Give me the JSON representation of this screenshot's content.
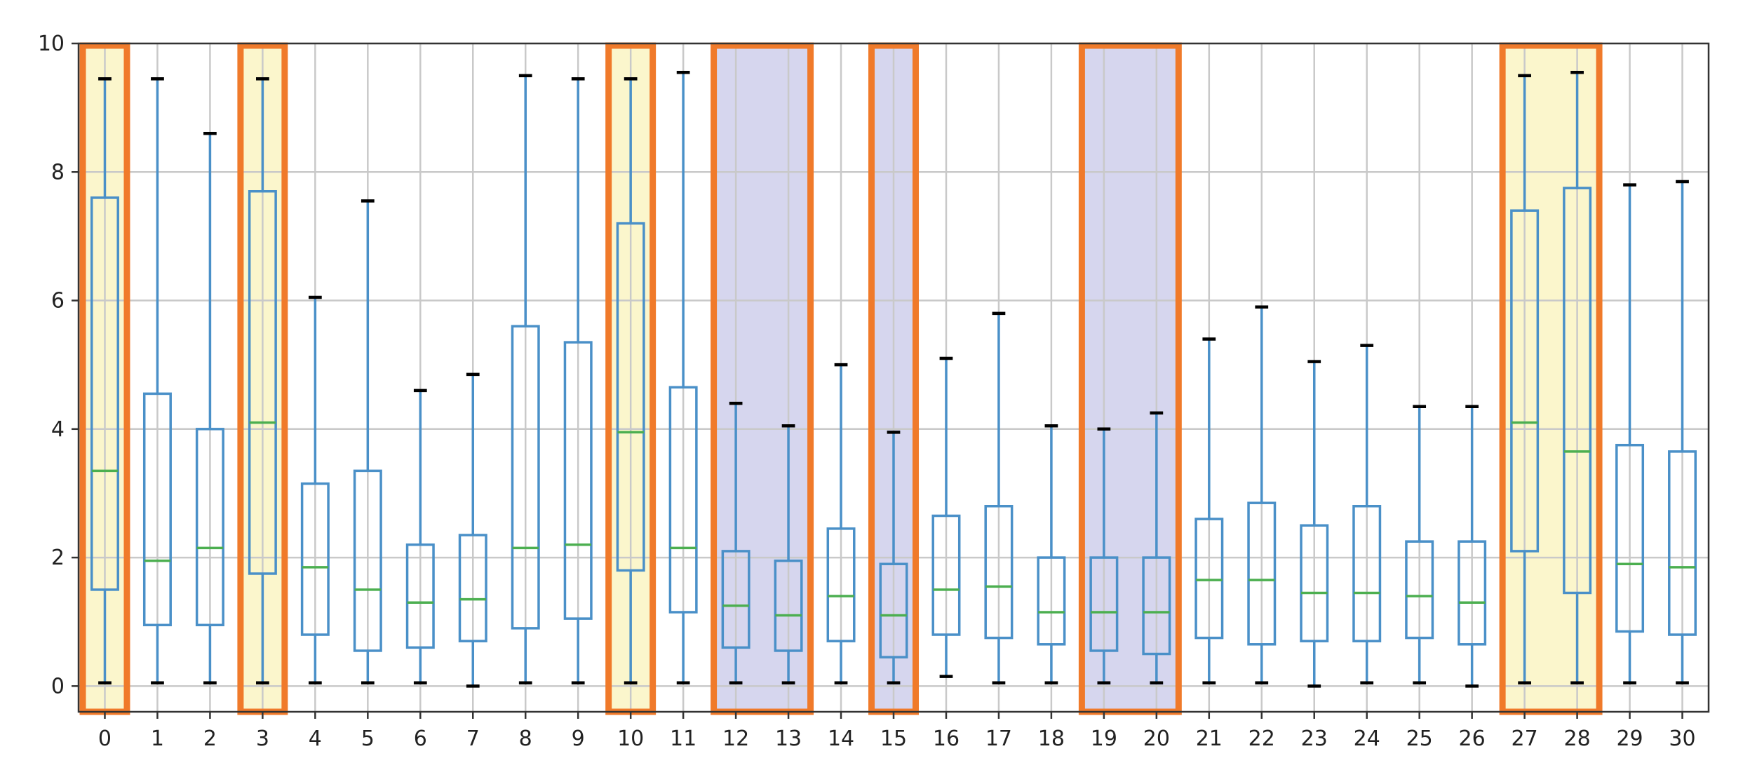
{
  "chart_data": {
    "type": "boxplot",
    "title": "",
    "xlabel": "",
    "ylabel": "",
    "grid": true,
    "xlim": [
      -0.5,
      30.5
    ],
    "ylim": [
      -0.4,
      10.0
    ],
    "yticks": [
      0,
      2,
      4,
      6,
      8,
      10
    ],
    "categories": [
      "0",
      "1",
      "2",
      "3",
      "4",
      "5",
      "6",
      "7",
      "8",
      "9",
      "10",
      "11",
      "12",
      "13",
      "14",
      "15",
      "16",
      "17",
      "18",
      "19",
      "20",
      "21",
      "22",
      "23",
      "24",
      "25",
      "26",
      "27",
      "28",
      "29",
      "30"
    ],
    "boxes": [
      {
        "label": "0",
        "whisker_low": 0.05,
        "q1": 1.5,
        "median": 3.35,
        "q3": 7.6,
        "whisker_high": 9.45
      },
      {
        "label": "1",
        "whisker_low": 0.05,
        "q1": 0.95,
        "median": 1.95,
        "q3": 4.55,
        "whisker_high": 9.45
      },
      {
        "label": "2",
        "whisker_low": 0.05,
        "q1": 0.95,
        "median": 2.15,
        "q3": 4.0,
        "whisker_high": 8.6
      },
      {
        "label": "3",
        "whisker_low": 0.05,
        "q1": 1.75,
        "median": 4.1,
        "q3": 7.7,
        "whisker_high": 9.45
      },
      {
        "label": "4",
        "whisker_low": 0.05,
        "q1": 0.8,
        "median": 1.85,
        "q3": 3.15,
        "whisker_high": 6.05
      },
      {
        "label": "5",
        "whisker_low": 0.05,
        "q1": 0.55,
        "median": 1.5,
        "q3": 3.35,
        "whisker_high": 7.55
      },
      {
        "label": "6",
        "whisker_low": 0.05,
        "q1": 0.6,
        "median": 1.3,
        "q3": 2.2,
        "whisker_high": 4.6
      },
      {
        "label": "7",
        "whisker_low": 0.0,
        "q1": 0.7,
        "median": 1.35,
        "q3": 2.35,
        "whisker_high": 4.85
      },
      {
        "label": "8",
        "whisker_low": 0.05,
        "q1": 0.9,
        "median": 2.15,
        "q3": 5.6,
        "whisker_high": 9.5
      },
      {
        "label": "9",
        "whisker_low": 0.05,
        "q1": 1.05,
        "median": 2.2,
        "q3": 5.35,
        "whisker_high": 9.45
      },
      {
        "label": "10",
        "whisker_low": 0.05,
        "q1": 1.8,
        "median": 3.95,
        "q3": 7.2,
        "whisker_high": 9.45
      },
      {
        "label": "11",
        "whisker_low": 0.05,
        "q1": 1.15,
        "median": 2.15,
        "q3": 4.65,
        "whisker_high": 9.55
      },
      {
        "label": "12",
        "whisker_low": 0.05,
        "q1": 0.6,
        "median": 1.25,
        "q3": 2.1,
        "whisker_high": 4.4
      },
      {
        "label": "13",
        "whisker_low": 0.05,
        "q1": 0.55,
        "median": 1.1,
        "q3": 1.95,
        "whisker_high": 4.05
      },
      {
        "label": "14",
        "whisker_low": 0.05,
        "q1": 0.7,
        "median": 1.4,
        "q3": 2.45,
        "whisker_high": 5.0
      },
      {
        "label": "15",
        "whisker_low": 0.05,
        "q1": 0.45,
        "median": 1.1,
        "q3": 1.9,
        "whisker_high": 3.95
      },
      {
        "label": "16",
        "whisker_low": 0.15,
        "q1": 0.8,
        "median": 1.5,
        "q3": 2.65,
        "whisker_high": 5.1
      },
      {
        "label": "17",
        "whisker_low": 0.05,
        "q1": 0.75,
        "median": 1.55,
        "q3": 2.8,
        "whisker_high": 5.8
      },
      {
        "label": "18",
        "whisker_low": 0.05,
        "q1": 0.65,
        "median": 1.15,
        "q3": 2.0,
        "whisker_high": 4.05
      },
      {
        "label": "19",
        "whisker_low": 0.05,
        "q1": 0.55,
        "median": 1.15,
        "q3": 2.0,
        "whisker_high": 4.0
      },
      {
        "label": "20",
        "whisker_low": 0.05,
        "q1": 0.5,
        "median": 1.15,
        "q3": 2.0,
        "whisker_high": 4.25
      },
      {
        "label": "21",
        "whisker_low": 0.05,
        "q1": 0.75,
        "median": 1.65,
        "q3": 2.6,
        "whisker_high": 5.4
      },
      {
        "label": "22",
        "whisker_low": 0.05,
        "q1": 0.65,
        "median": 1.65,
        "q3": 2.85,
        "whisker_high": 5.9
      },
      {
        "label": "23",
        "whisker_low": 0.0,
        "q1": 0.7,
        "median": 1.45,
        "q3": 2.5,
        "whisker_high": 5.05
      },
      {
        "label": "24",
        "whisker_low": 0.05,
        "q1": 0.7,
        "median": 1.45,
        "q3": 2.8,
        "whisker_high": 5.3
      },
      {
        "label": "25",
        "whisker_low": 0.05,
        "q1": 0.75,
        "median": 1.4,
        "q3": 2.25,
        "whisker_high": 4.35
      },
      {
        "label": "26",
        "whisker_low": 0.0,
        "q1": 0.65,
        "median": 1.3,
        "q3": 2.25,
        "whisker_high": 4.35
      },
      {
        "label": "27",
        "whisker_low": 0.05,
        "q1": 2.1,
        "median": 4.1,
        "q3": 7.4,
        "whisker_high": 9.5
      },
      {
        "label": "28",
        "whisker_low": 0.05,
        "q1": 1.45,
        "median": 3.65,
        "q3": 7.75,
        "whisker_high": 9.55
      },
      {
        "label": "29",
        "whisker_low": 0.05,
        "q1": 0.85,
        "median": 1.9,
        "q3": 3.75,
        "whisker_high": 7.8
      },
      {
        "label": "30",
        "whisker_low": 0.05,
        "q1": 0.8,
        "median": 1.85,
        "q3": 3.65,
        "whisker_high": 7.85
      }
    ],
    "highlight_groups": [
      {
        "style": "yellow",
        "members": [
          "0"
        ]
      },
      {
        "style": "yellow",
        "members": [
          "3"
        ]
      },
      {
        "style": "yellow",
        "members": [
          "10"
        ]
      },
      {
        "style": "purple",
        "members": [
          "12",
          "13"
        ]
      },
      {
        "style": "purple",
        "members": [
          "15"
        ]
      },
      {
        "style": "purple",
        "members": [
          "19",
          "20"
        ]
      },
      {
        "style": "yellow",
        "members": [
          "27",
          "28"
        ]
      }
    ],
    "colors": {
      "box": "#4a90c8",
      "median": "#4caf50",
      "cap": "#000000",
      "grid": "#c9c9c9",
      "highlight_border": "#f07a2a",
      "highlight_yellow": "#fbf6cc",
      "highlight_purple": "#d6d6ee",
      "axes": "#333333"
    }
  }
}
